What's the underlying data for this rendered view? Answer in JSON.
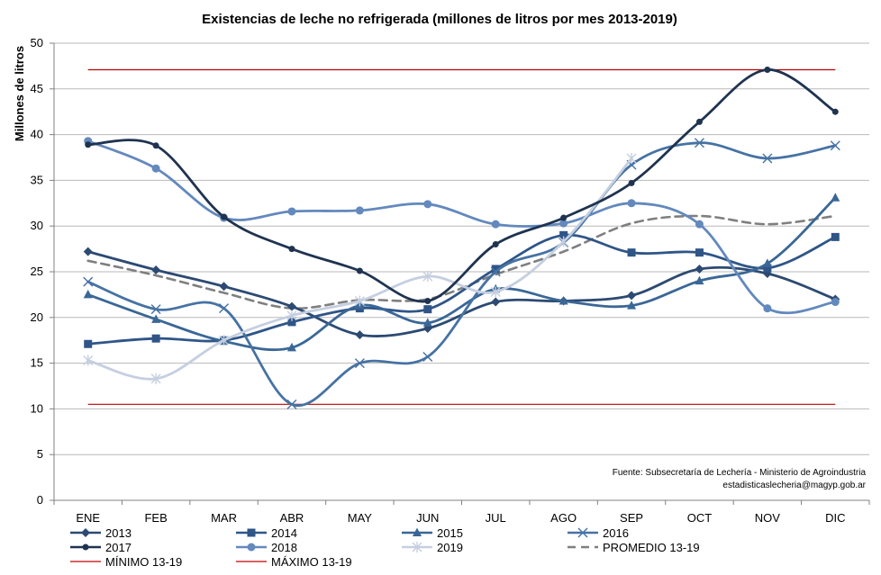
{
  "chart_data": {
    "type": "line",
    "title": "Existencias de leche no refrigerada (millones de litros por mes 2013-2019)",
    "xlabel": "",
    "ylabel": "Millones de litros",
    "ylim": [
      0,
      50
    ],
    "yticks": [
      0,
      5,
      10,
      15,
      20,
      25,
      30,
      35,
      40,
      45,
      50
    ],
    "categories": [
      "ENE",
      "FEB",
      "MAR",
      "ABR",
      "MAY",
      "JUN",
      "JUL",
      "AGO",
      "SEP",
      "OCT",
      "NOV",
      "DIC"
    ],
    "grid": "horizontal",
    "legend_position": "bottom",
    "series": [
      {
        "name": "2013",
        "color": "#2c4a72",
        "marker": "diamond",
        "dash": "solid",
        "values": [
          27.2,
          25.2,
          23.4,
          21.2,
          18.1,
          18.8,
          21.7,
          21.8,
          22.4,
          25.3,
          24.8,
          22.0
        ]
      },
      {
        "name": "2014",
        "color": "#2f5587",
        "marker": "square",
        "dash": "solid",
        "values": [
          17.1,
          17.7,
          17.5,
          19.5,
          21.0,
          20.9,
          25.3,
          29.0,
          27.1,
          27.1,
          25.4,
          28.8
        ]
      },
      {
        "name": "2015",
        "color": "#3a6796",
        "marker": "triangle",
        "dash": "solid",
        "values": [
          22.5,
          19.8,
          17.4,
          16.7,
          21.3,
          19.4,
          23.1,
          21.8,
          21.3,
          24.0,
          25.9,
          33.1
        ]
      },
      {
        "name": "2016",
        "color": "#4672a4",
        "marker": "x",
        "dash": "solid",
        "values": [
          23.9,
          20.9,
          21.0,
          10.5,
          15.0,
          15.7,
          25.0,
          28.2,
          36.7,
          39.1,
          37.4,
          38.8
        ]
      },
      {
        "name": "2017",
        "color": "#1f3350",
        "marker": "dot",
        "dash": "solid",
        "values": [
          38.9,
          38.8,
          31.0,
          27.5,
          25.1,
          21.8,
          28.0,
          30.9,
          34.7,
          41.4,
          47.1,
          42.5
        ]
      },
      {
        "name": "2018",
        "color": "#6389bd",
        "marker": "circle",
        "dash": "solid",
        "values": [
          39.3,
          36.3,
          30.9,
          31.6,
          31.7,
          32.4,
          30.2,
          30.3,
          32.5,
          30.2,
          21.0,
          21.7
        ]
      },
      {
        "name": "2019",
        "color": "#c5cfe0",
        "marker": "star",
        "dash": "solid",
        "values": [
          15.3,
          13.3,
          17.5,
          20.2,
          21.8,
          24.5,
          22.8,
          28.3,
          37.4,
          null,
          null,
          null
        ]
      },
      {
        "name": "PROMEDIO 13-19",
        "color": "#7f7f7f",
        "marker": "none",
        "dash": "dashed",
        "values": [
          26.2,
          24.6,
          22.7,
          21.0,
          21.9,
          22.0,
          24.7,
          27.2,
          30.3,
          31.1,
          30.2,
          31.1
        ]
      },
      {
        "name": "MÍNIMO 13-19",
        "color": "#c00000",
        "marker": "none",
        "dash": "thin",
        "values": [
          10.5,
          10.5,
          10.5,
          10.5,
          10.5,
          10.5,
          10.5,
          10.5,
          10.5,
          10.5,
          10.5,
          10.5
        ]
      },
      {
        "name": "MÁXIMO 13-19",
        "color": "#c00000",
        "marker": "none",
        "dash": "thin",
        "values": [
          47.1,
          47.1,
          47.1,
          47.1,
          47.1,
          47.1,
          47.1,
          47.1,
          47.1,
          47.1,
          47.1,
          47.1
        ]
      }
    ],
    "source_lines": [
      "Fuente: Subsecretaría de Lechería - Ministerio de Agroindustria",
      "estadisticaslecheria@magyp.gob.ar"
    ]
  }
}
